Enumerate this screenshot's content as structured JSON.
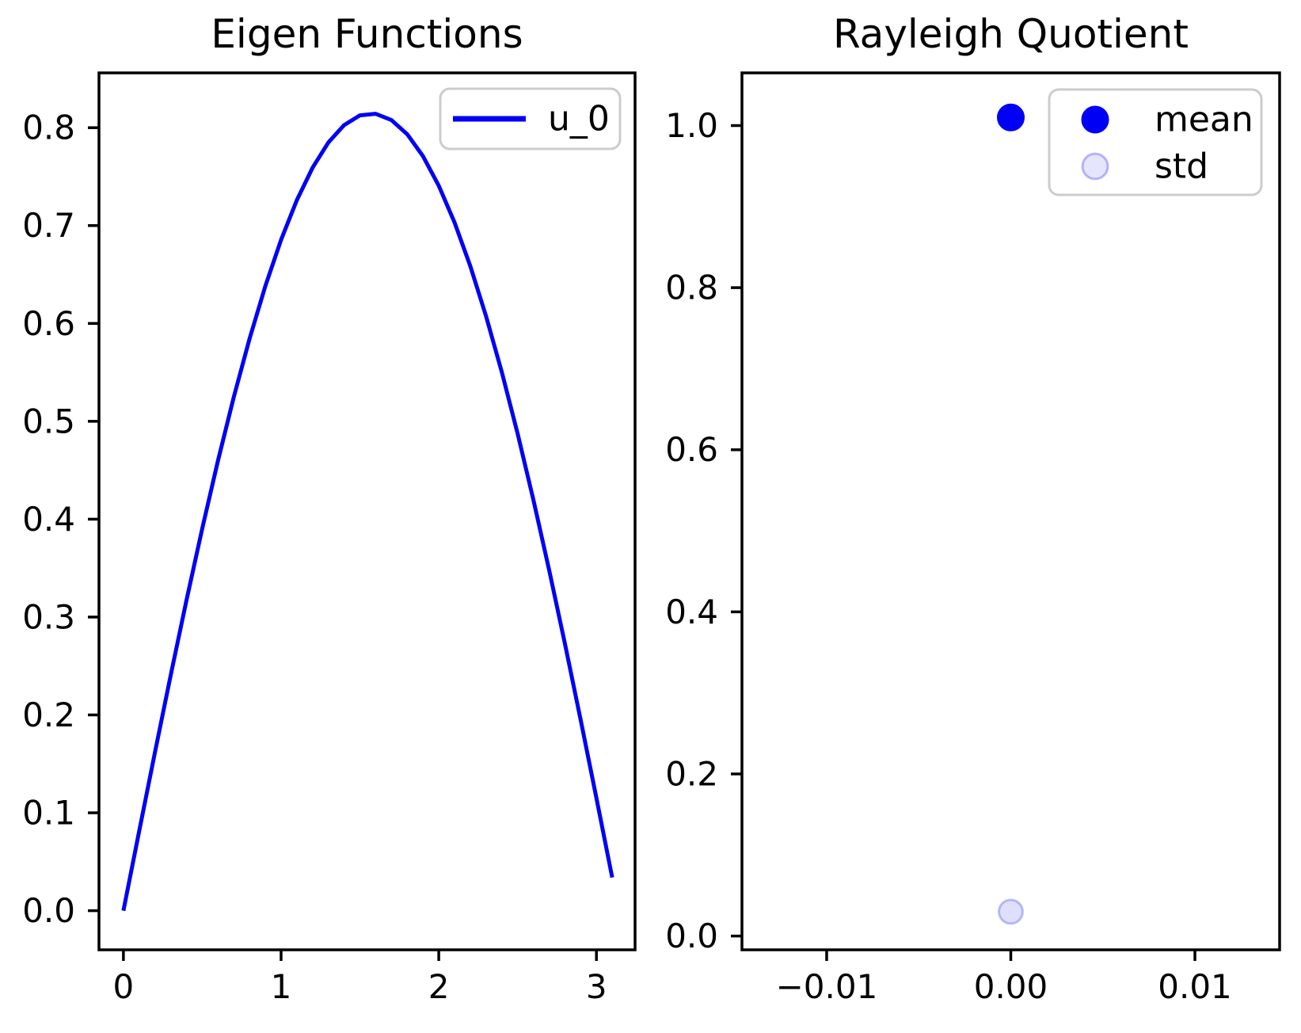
{
  "figure": {
    "background": "#ffffff",
    "plot_titles": [
      "Eigen Functions",
      "Rayleigh Quotient"
    ]
  },
  "chart_data": [
    {
      "type": "line",
      "title": "Eigen Functions",
      "xlabel": "",
      "ylabel": "",
      "grid": false,
      "xlim": [
        -0.155,
        3.245
      ],
      "ylim": [
        -0.04,
        0.856
      ],
      "xticks": {
        "values": [
          0,
          1,
          2,
          3
        ],
        "labels": [
          "0",
          "1",
          "2",
          "3"
        ]
      },
      "yticks": {
        "values": [
          0.0,
          0.1,
          0.2,
          0.3,
          0.4,
          0.5,
          0.6,
          0.7,
          0.8
        ],
        "labels": [
          "0.0",
          "0.1",
          "0.2",
          "0.3",
          "0.4",
          "0.5",
          "0.6",
          "0.7",
          "0.8"
        ]
      },
      "series": [
        {
          "name": "u_0",
          "color": "#0000f5",
          "line_width": 5,
          "x": [
            0,
            0.1,
            0.2,
            0.3,
            0.4,
            0.5,
            0.6,
            0.7,
            0.8,
            0.9,
            1.0,
            1.1,
            1.2,
            1.3,
            1.4,
            1.5,
            1.6,
            1.7,
            1.8,
            1.9,
            2.0,
            2.1,
            2.2,
            2.3,
            2.4,
            2.5,
            2.6,
            2.7,
            2.8,
            2.9,
            3.0,
            3.1
          ],
          "y": [
            0,
            0.0813,
            0.1618,
            0.2407,
            0.3172,
            0.3905,
            0.46,
            0.5248,
            0.5844,
            0.6381,
            0.6855,
            0.726,
            0.7592,
            0.7849,
            0.8027,
            0.8126,
            0.8142,
            0.8078,
            0.7933,
            0.7709,
            0.7407,
            0.7032,
            0.6586,
            0.6074,
            0.5502,
            0.4875,
            0.4199,
            0.3481,
            0.2729,
            0.1949,
            0.115,
            0.0339
          ]
        }
      ],
      "legend": {
        "location": "upper right",
        "entries": [
          {
            "label": "u_0",
            "marker": "line",
            "color": "#0000f5",
            "fill_opacity": 1,
            "edge_opacity": 1
          }
        ]
      }
    },
    {
      "type": "scatter",
      "title": "Rayleigh Quotient",
      "xlabel": "",
      "ylabel": "",
      "grid": false,
      "xlim": [
        -0.0146,
        0.0146
      ],
      "ylim": [
        -0.017,
        1.065
      ],
      "xticks": {
        "values": [
          -0.01,
          0,
          0.01
        ],
        "labels": [
          "−0.01",
          "0.00",
          "0.01"
        ]
      },
      "yticks": {
        "values": [
          0.0,
          0.2,
          0.4,
          0.6,
          0.8,
          1.0
        ],
        "labels": [
          "0.0",
          "0.2",
          "0.4",
          "0.6",
          "0.8",
          "1.0"
        ]
      },
      "series": [
        {
          "name": "mean",
          "x": [
            0.0
          ],
          "y": [
            1.01
          ],
          "color": "#0000f5",
          "fill_opacity": 1,
          "edge_opacity": 1,
          "marker_radius": 16
        },
        {
          "name": "std",
          "x": [
            0.0
          ],
          "y": [
            0.03
          ],
          "color": "#0000f5",
          "fill_opacity": 0.12,
          "edge_opacity": 0.24,
          "marker_radius": 15
        }
      ],
      "legend": {
        "location": "upper right",
        "entries": [
          {
            "label": "mean",
            "marker": "dot",
            "color": "#0000f5",
            "fill_opacity": 1,
            "edge_opacity": 1
          },
          {
            "label": "std",
            "marker": "dot",
            "color": "#0000f5",
            "fill_opacity": 0.1,
            "edge_opacity": 0.26
          }
        ]
      }
    }
  ]
}
